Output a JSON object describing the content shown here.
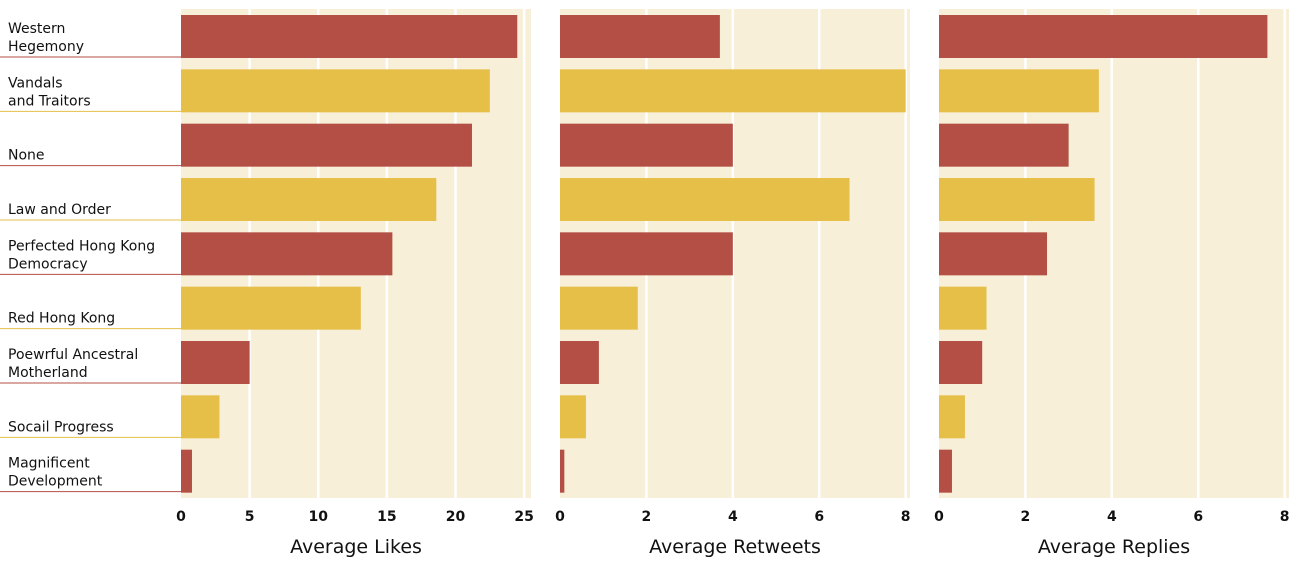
{
  "chart_data": {
    "type": "bar",
    "orientation": "horizontal",
    "categories": [
      [
        "Western",
        "Hegemony"
      ],
      [
        "Vandals",
        "and Traitors"
      ],
      [
        "None"
      ],
      [
        "Law and Order"
      ],
      [
        "Perfected Hong Kong",
        "Democracy"
      ],
      [
        "Red Hong Kong"
      ],
      [
        "Poewrful Ancestral",
        "Motherland"
      ],
      [
        "Socail Progress"
      ],
      [
        "Magnificent",
        "Development"
      ]
    ],
    "bar_colors": [
      "#b34f45",
      "#e6bf48",
      "#b34f45",
      "#e6bf48",
      "#b34f45",
      "#e6bf48",
      "#b34f45",
      "#e6bf48",
      "#b34f45"
    ],
    "panel_background": "#f8efd8",
    "grid": true,
    "grid_color": "#ffffff",
    "panels": [
      {
        "xlabel": "Average Likes",
        "xlim": [
          0,
          25.5
        ],
        "ticks": [
          0,
          5,
          10,
          15,
          20,
          25
        ],
        "values": [
          24.5,
          22.5,
          21.2,
          18.6,
          15.4,
          13.1,
          5.0,
          2.8,
          0.8
        ]
      },
      {
        "xlabel": "Average Retweets",
        "xlim": [
          0,
          8.1
        ],
        "ticks": [
          0,
          2,
          4,
          6,
          8
        ],
        "values": [
          3.7,
          8.0,
          4.0,
          6.7,
          4.0,
          1.8,
          0.9,
          0.6,
          0.1
        ]
      },
      {
        "xlabel": "Average Replies",
        "xlim": [
          0,
          8.1
        ],
        "ticks": [
          0,
          2,
          4,
          6,
          8
        ],
        "values": [
          7.6,
          3.7,
          3.0,
          3.6,
          2.5,
          1.1,
          1.0,
          0.6,
          0.3
        ]
      }
    ]
  }
}
